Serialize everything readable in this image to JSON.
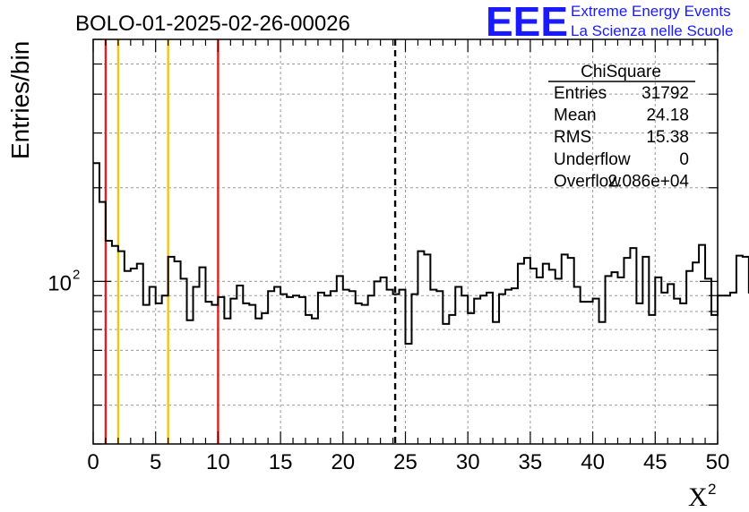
{
  "chart_data": {
    "type": "histogram",
    "title": "BOLO-01-2025-02-26-00026",
    "xlabel": "X",
    "xlabel_sup": "2",
    "ylabel": "Entries/bin",
    "xlim": [
      0,
      50
    ],
    "ylim": [
      30,
      600
    ],
    "ylog": true,
    "grid": true,
    "bin_width": 0.5,
    "x_ticks": [
      0,
      5,
      10,
      15,
      20,
      25,
      30,
      35,
      40,
      45,
      50
    ],
    "y_tick_labels": [
      {
        "value": 100,
        "base": "10",
        "exp": "2"
      }
    ],
    "values": [
      240,
      180,
      135,
      130,
      125,
      108,
      110,
      114,
      84,
      96,
      85,
      90,
      120,
      116,
      102,
      75,
      96,
      111,
      86,
      84,
      89,
      76,
      88,
      97,
      85,
      84,
      76,
      79,
      93,
      96,
      91,
      89,
      90,
      89,
      78,
      76,
      92,
      90,
      93,
      104,
      94,
      93,
      85,
      84,
      90,
      100,
      103,
      94,
      91,
      94,
      63,
      91,
      125,
      122,
      94,
      93,
      73,
      78,
      96,
      90,
      79,
      88,
      90,
      92,
      74,
      91,
      94,
      95,
      114,
      119,
      110,
      103,
      114,
      109,
      102,
      122,
      119,
      96,
      86,
      86,
      88,
      74,
      104,
      107,
      103,
      119,
      128,
      85,
      120,
      78,
      103,
      92,
      98,
      88,
      85,
      108,
      115,
      131,
      102,
      78,
      90,
      90,
      92,
      121,
      120,
      92,
      91,
      114,
      120,
      116,
      97,
      91,
      93,
      81,
      90,
      99,
      107,
      97,
      85,
      91,
      128,
      115,
      98,
      91,
      105,
      132,
      113,
      109,
      108,
      102,
      103,
      120,
      129,
      110,
      104,
      106,
      114,
      111,
      114,
      119,
      106,
      118,
      111,
      103,
      99,
      106,
      114,
      101,
      107,
      111
    ],
    "vlines": [
      {
        "x": 1,
        "color": "#e0201a",
        "style": "solid"
      },
      {
        "x": 2,
        "color": "#f5c21b",
        "style": "solid"
      },
      {
        "x": 6,
        "color": "#f5c21b",
        "style": "solid"
      },
      {
        "x": 10,
        "color": "#e0201a",
        "style": "solid"
      },
      {
        "x": 24.18,
        "color": "#000000",
        "style": "dashed"
      }
    ],
    "stats_box": {
      "title": "ChiSquare",
      "rows": [
        {
          "label": "Entries",
          "value": "31792"
        },
        {
          "label": "Mean",
          "value": "24.18"
        },
        {
          "label": "RMS",
          "value": "15.38"
        },
        {
          "label": "Underflow",
          "value": "0"
        },
        {
          "label": "Overflow",
          "value": "2.086e+04"
        }
      ]
    }
  },
  "logo": {
    "mark": "EEE",
    "line1": "Extreme Energy Events",
    "line2": "La Scienza nelle Scuole",
    "color": "#1a1aff"
  }
}
